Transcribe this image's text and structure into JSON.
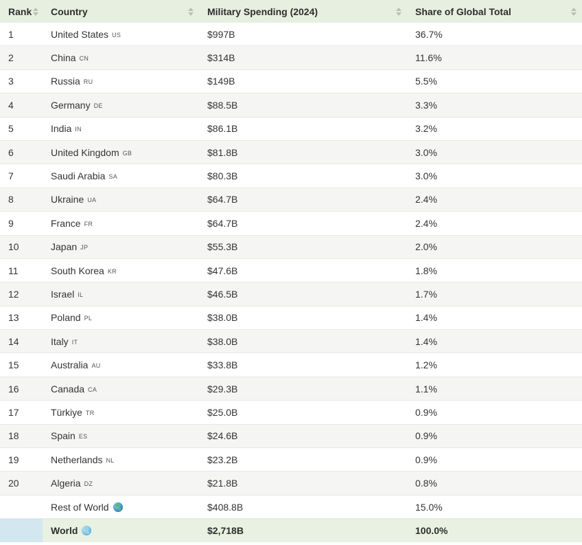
{
  "headers": {
    "rank": "Rank",
    "country": "Country",
    "spending": "Military Spending (2024)",
    "share": "Share of Global Total"
  },
  "rows": [
    {
      "rank": "1",
      "country": "United States",
      "code": "US",
      "spending": "$997B",
      "share": "36.7%"
    },
    {
      "rank": "2",
      "country": "China",
      "code": "CN",
      "spending": "$314B",
      "share": "11.6%"
    },
    {
      "rank": "3",
      "country": "Russia",
      "code": "RU",
      "spending": "$149B",
      "share": "5.5%"
    },
    {
      "rank": "4",
      "country": "Germany",
      "code": "DE",
      "spending": "$88.5B",
      "share": "3.3%"
    },
    {
      "rank": "5",
      "country": "India",
      "code": "IN",
      "spending": "$86.1B",
      "share": "3.2%"
    },
    {
      "rank": "6",
      "country": "United Kingdom",
      "code": "GB",
      "spending": "$81.8B",
      "share": "3.0%"
    },
    {
      "rank": "7",
      "country": "Saudi Arabia",
      "code": "SA",
      "spending": "$80.3B",
      "share": "3.0%"
    },
    {
      "rank": "8",
      "country": "Ukraine",
      "code": "UA",
      "spending": "$64.7B",
      "share": "2.4%"
    },
    {
      "rank": "9",
      "country": "France",
      "code": "FR",
      "spending": "$64.7B",
      "share": "2.4%"
    },
    {
      "rank": "10",
      "country": "Japan",
      "code": "JP",
      "spending": "$55.3B",
      "share": "2.0%"
    },
    {
      "rank": "11",
      "country": "South Korea",
      "code": "KR",
      "spending": "$47.6B",
      "share": "1.8%"
    },
    {
      "rank": "12",
      "country": "Israel",
      "code": "IL",
      "spending": "$46.5B",
      "share": "1.7%"
    },
    {
      "rank": "13",
      "country": "Poland",
      "code": "PL",
      "spending": "$38.0B",
      "share": "1.4%"
    },
    {
      "rank": "14",
      "country": "Italy",
      "code": "IT",
      "spending": "$38.0B",
      "share": "1.4%"
    },
    {
      "rank": "15",
      "country": "Australia",
      "code": "AU",
      "spending": "$33.8B",
      "share": "1.2%"
    },
    {
      "rank": "16",
      "country": "Canada",
      "code": "CA",
      "spending": "$29.3B",
      "share": "1.1%"
    },
    {
      "rank": "17",
      "country": "Türkiye",
      "code": "TR",
      "spending": "$25.0B",
      "share": "0.9%"
    },
    {
      "rank": "18",
      "country": "Spain",
      "code": "ES",
      "spending": "$24.6B",
      "share": "0.9%"
    },
    {
      "rank": "19",
      "country": "Netherlands",
      "code": "NL",
      "spending": "$23.2B",
      "share": "0.9%"
    },
    {
      "rank": "20",
      "country": "Algeria",
      "code": "DZ",
      "spending": "$21.8B",
      "share": "0.8%"
    }
  ],
  "rest_of_world": {
    "country": "Rest of World",
    "spending": "$408.8B",
    "share": "15.0%",
    "icon": "globe-icon"
  },
  "world": {
    "country": "World",
    "spending": "$2,718B",
    "share": "100.0%",
    "icon": "globe-icon"
  },
  "colors": {
    "header_bg": "#e7efe0",
    "stripe_bg": "#f5f6f3",
    "total_bg": "#e8f1e2",
    "total_rank_bg": "#d3e7f1"
  }
}
